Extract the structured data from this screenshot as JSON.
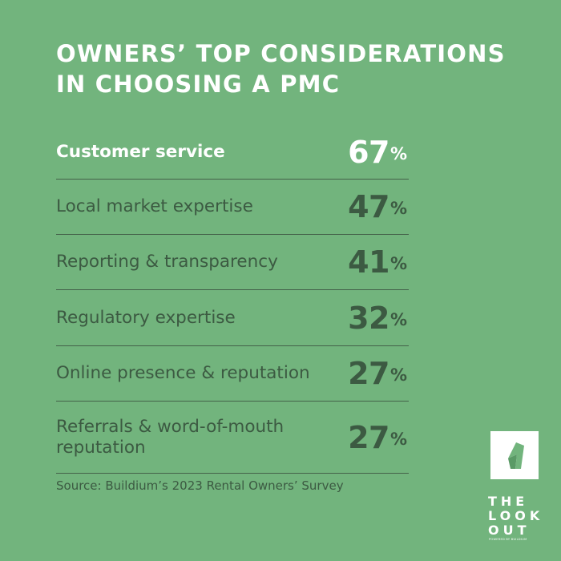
{
  "title": {
    "line1": "OWNERS’ TOP CONSIDERATIONS",
    "line2": "IN CHOOSING A PMC"
  },
  "chart_data": {
    "type": "table",
    "title": "OWNERS’ TOP CONSIDERATIONS IN CHOOSING A PMC",
    "categories": [
      "Customer service",
      "Local market expertise",
      "Reporting & transparency",
      "Regulatory expertise",
      "Online presence & reputation",
      "Referrals & word-of-mouth reputation"
    ],
    "values": [
      67,
      47,
      41,
      32,
      27,
      27
    ],
    "unit": "%",
    "rows": [
      {
        "label": "Customer service",
        "value": "67",
        "unit": "%",
        "highlight": true
      },
      {
        "label": "Local market expertise",
        "value": "47",
        "unit": "%"
      },
      {
        "label": "Reporting & transparency",
        "value": "41",
        "unit": "%"
      },
      {
        "label": "Regulatory expertise",
        "value": "32",
        "unit": "%"
      },
      {
        "label": "Online presence & reputation",
        "value": "27",
        "unit": "%"
      },
      {
        "label": "Referrals & word-of-mouth reputation",
        "value": "27",
        "unit": "%"
      }
    ]
  },
  "source": "Source: Buildium’s 2023 Rental Owners’ Survey",
  "logo": {
    "lines": [
      "THE",
      "LOOK",
      "OUT"
    ],
    "tagline": "POWERED BY BUILDIUM"
  },
  "colors": {
    "background": "#72b47d",
    "text_dark": "#3c5a42",
    "highlight": "#ffffff",
    "divider": "#44614a"
  }
}
